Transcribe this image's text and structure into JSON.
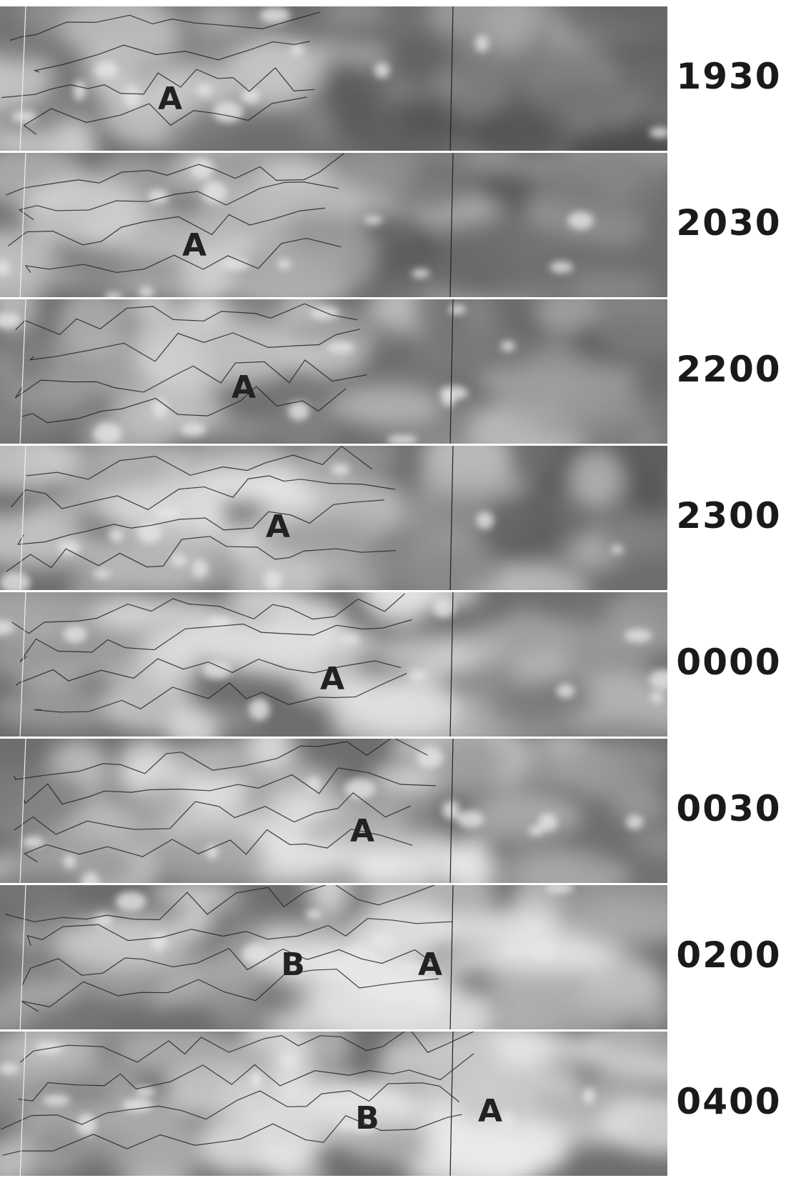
{
  "panels": [
    {
      "time": "1930",
      "markers": [
        "A"
      ]
    },
    {
      "time": "2030",
      "markers": [
        "A"
      ]
    },
    {
      "time": "2200",
      "markers": [
        "A"
      ]
    },
    {
      "time": "2300",
      "markers": [
        "A"
      ]
    },
    {
      "time": "0000",
      "markers": [
        "A"
      ]
    },
    {
      "time": "0030",
      "markers": [
        "A"
      ]
    },
    {
      "time": "0200",
      "markers": [
        "B",
        "A"
      ]
    },
    {
      "time": "0400",
      "markers": [
        "B",
        "A"
      ]
    }
  ]
}
